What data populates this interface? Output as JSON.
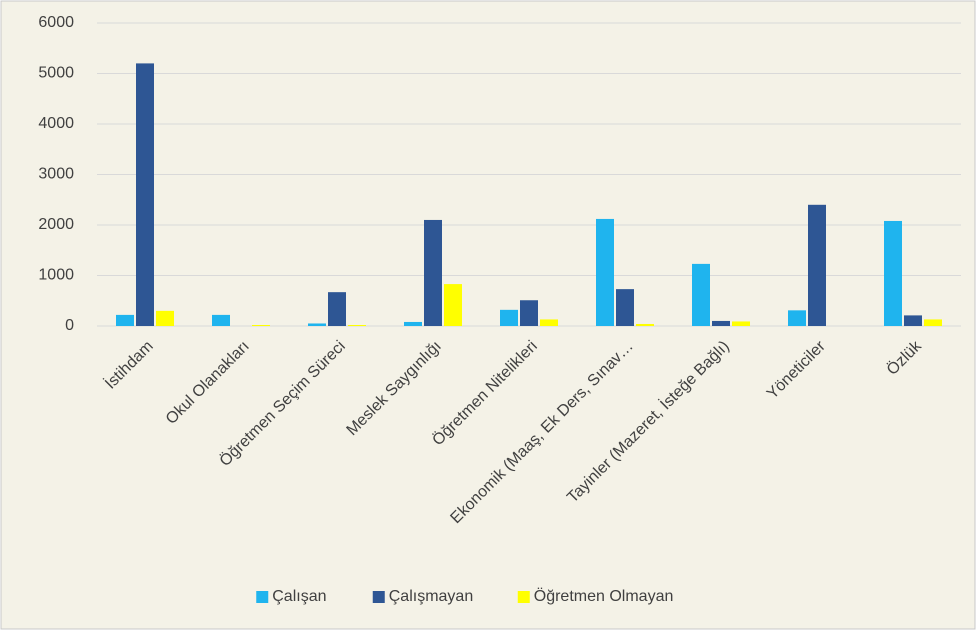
{
  "chart_data": {
    "type": "bar",
    "categories": [
      "İstihdam",
      "Okul Olanakları",
      "Öğretmen Seçim Süreci",
      "Meslek Saygınlığı",
      "Öğretmen Nitelikleri",
      "Ekonomik (Maaş, Ek Ders, Sınav…",
      "Tayinler (Mazeret, İsteğe Bağlı)",
      "Yöneticiler",
      "Özlük"
    ],
    "series": [
      {
        "name": "Çalışan",
        "color": "#1fb4ee",
        "values": [
          220,
          220,
          50,
          80,
          320,
          2120,
          1230,
          310,
          2080
        ]
      },
      {
        "name": "Çalışmayan",
        "color": "#2e5694",
        "values": [
          5200,
          0,
          670,
          2100,
          510,
          730,
          100,
          2400,
          210
        ]
      },
      {
        "name": "Öğretmen Olmayan",
        "color": "#ffff00",
        "values": [
          300,
          20,
          20,
          830,
          130,
          40,
          90,
          0,
          130
        ]
      }
    ],
    "ylim": [
      0,
      6000
    ],
    "yticks": [
      0,
      1000,
      2000,
      3000,
      4000,
      5000,
      6000
    ],
    "grid": true,
    "legend": "bottom"
  }
}
